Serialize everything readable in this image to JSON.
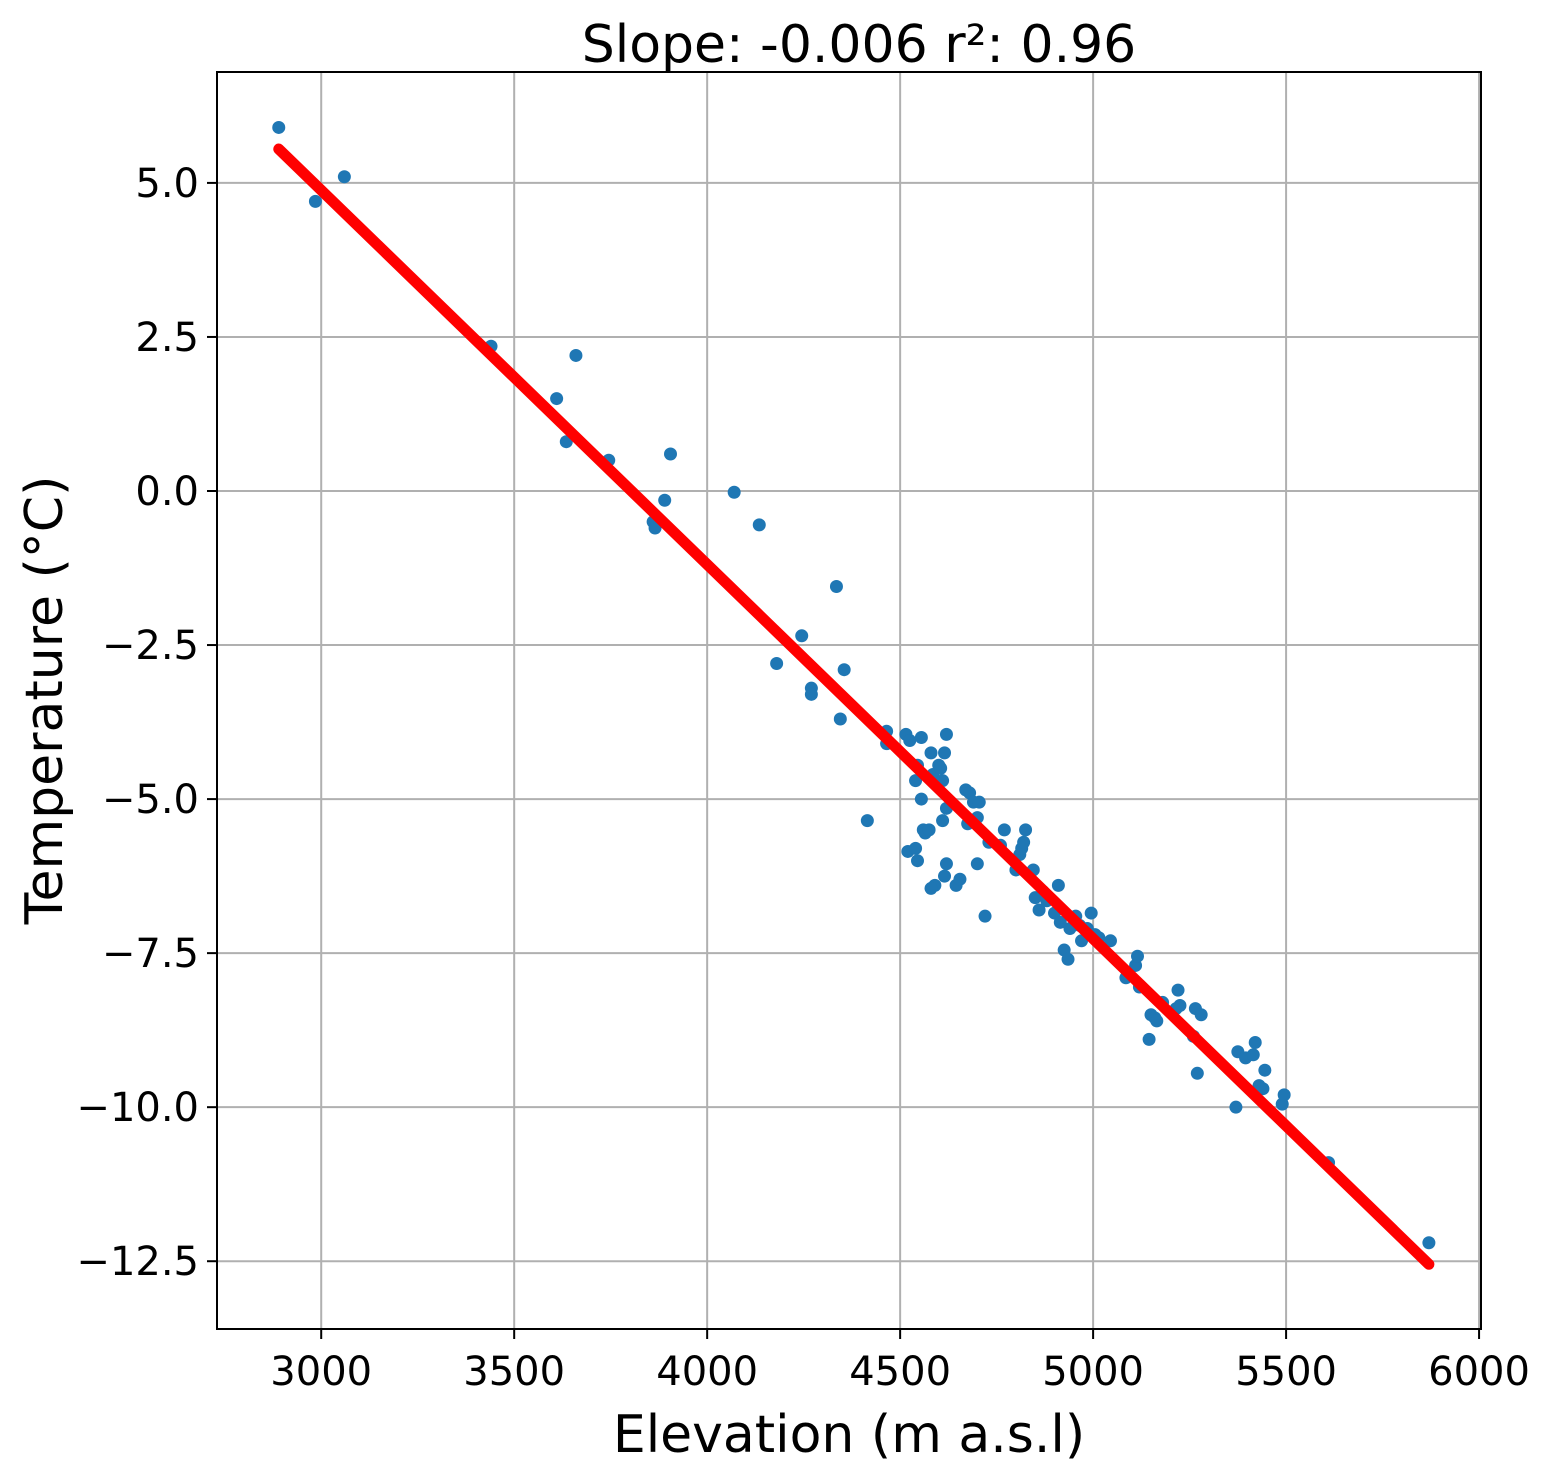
{
  "chart_data": {
    "type": "scatter",
    "title": "Slope: -0.006  r²: 0.96",
    "xlabel": "Elevation (m a.s.l)",
    "ylabel": "Temperature (°C)",
    "xlim": [
      2730,
      6005
    ],
    "ylim": [
      -13.6,
      6.8
    ],
    "xticks": [
      3000,
      3500,
      4000,
      4500,
      5000,
      5500,
      6000
    ],
    "xtick_labels": [
      "3000",
      "3500",
      "4000",
      "4500",
      "5000",
      "5500",
      "6000"
    ],
    "yticks": [
      5.0,
      2.5,
      0.0,
      -2.5,
      -5.0,
      -7.5,
      -10.0,
      -12.5
    ],
    "ytick_labels": [
      "5.0",
      "2.5",
      "0.0",
      "−2.5",
      "−5.0",
      "−7.5",
      "−10.0",
      "−12.5"
    ],
    "grid": true,
    "series": [
      {
        "name": "observations",
        "kind": "scatter",
        "color": "#1f77b4",
        "points": [
          [
            2890,
            5.9
          ],
          [
            2985,
            4.7
          ],
          [
            3060,
            5.1
          ],
          [
            3440,
            2.35
          ],
          [
            3660,
            2.2
          ],
          [
            3610,
            1.5
          ],
          [
            3635,
            0.8
          ],
          [
            3745,
            0.5
          ],
          [
            3860,
            -0.5
          ],
          [
            3865,
            -0.6
          ],
          [
            3890,
            -0.15
          ],
          [
            3905,
            0.6
          ],
          [
            4070,
            -0.02
          ],
          [
            4135,
            -0.55
          ],
          [
            4245,
            -2.35
          ],
          [
            4180,
            -2.8
          ],
          [
            4270,
            -3.2
          ],
          [
            4270,
            -3.3
          ],
          [
            4335,
            -1.55
          ],
          [
            4355,
            -2.9
          ],
          [
            4345,
            -3.7
          ],
          [
            4415,
            -5.35
          ],
          [
            4465,
            -3.9
          ],
          [
            4465,
            -4.1
          ],
          [
            4515,
            -3.95
          ],
          [
            4525,
            -4.05
          ],
          [
            4540,
            -4.7
          ],
          [
            4545,
            -4.45
          ],
          [
            4555,
            -4.0
          ],
          [
            4555,
            -5.0
          ],
          [
            4560,
            -5.5
          ],
          [
            4565,
            -5.55
          ],
          [
            4575,
            -5.5
          ],
          [
            4580,
            -4.25
          ],
          [
            4585,
            -4.6
          ],
          [
            4595,
            -4.75
          ],
          [
            4600,
            -4.45
          ],
          [
            4605,
            -4.5
          ],
          [
            4610,
            -4.7
          ],
          [
            4615,
            -4.25
          ],
          [
            4620,
            -3.95
          ],
          [
            4620,
            -5.15
          ],
          [
            4610,
            -5.35
          ],
          [
            4620,
            -6.05
          ],
          [
            4615,
            -6.25
          ],
          [
            4590,
            -6.4
          ],
          [
            4580,
            -6.45
          ],
          [
            4520,
            -5.85
          ],
          [
            4540,
            -5.8
          ],
          [
            4545,
            -6.0
          ],
          [
            4645,
            -6.4
          ],
          [
            4655,
            -6.3
          ],
          [
            4670,
            -4.85
          ],
          [
            4680,
            -4.9
          ],
          [
            4690,
            -5.05
          ],
          [
            4700,
            -5.3
          ],
          [
            4705,
            -5.05
          ],
          [
            4675,
            -5.4
          ],
          [
            4700,
            -6.05
          ],
          [
            4720,
            -6.9
          ],
          [
            4730,
            -5.7
          ],
          [
            4770,
            -5.5
          ],
          [
            4760,
            -5.75
          ],
          [
            4800,
            -6.15
          ],
          [
            4810,
            -5.9
          ],
          [
            4815,
            -5.8
          ],
          [
            4820,
            -5.7
          ],
          [
            4825,
            -5.5
          ],
          [
            4845,
            -6.15
          ],
          [
            4850,
            -6.6
          ],
          [
            4860,
            -6.8
          ],
          [
            4870,
            -6.5
          ],
          [
            4880,
            -6.65
          ],
          [
            4900,
            -6.85
          ],
          [
            4910,
            -6.4
          ],
          [
            4915,
            -7.0
          ],
          [
            4925,
            -7.45
          ],
          [
            4935,
            -7.6
          ],
          [
            4940,
            -7.1
          ],
          [
            4955,
            -6.9
          ],
          [
            4965,
            -7.05
          ],
          [
            4970,
            -7.3
          ],
          [
            4985,
            -7.1
          ],
          [
            4995,
            -6.85
          ],
          [
            5005,
            -7.2
          ],
          [
            5015,
            -7.25
          ],
          [
            5045,
            -7.3
          ],
          [
            5085,
            -7.9
          ],
          [
            5110,
            -7.7
          ],
          [
            5115,
            -7.55
          ],
          [
            5120,
            -8.05
          ],
          [
            5145,
            -8.9
          ],
          [
            5150,
            -8.5
          ],
          [
            5160,
            -8.55
          ],
          [
            5165,
            -8.6
          ],
          [
            5180,
            -8.3
          ],
          [
            5215,
            -8.4
          ],
          [
            5220,
            -8.1
          ],
          [
            5225,
            -8.35
          ],
          [
            5260,
            -8.85
          ],
          [
            5265,
            -8.4
          ],
          [
            5270,
            -9.45
          ],
          [
            5280,
            -8.5
          ],
          [
            5370,
            -10.0
          ],
          [
            5375,
            -9.1
          ],
          [
            5395,
            -9.2
          ],
          [
            5415,
            -9.15
          ],
          [
            5420,
            -8.95
          ],
          [
            5430,
            -9.65
          ],
          [
            5440,
            -9.7
          ],
          [
            5445,
            -9.4
          ],
          [
            5490,
            -9.95
          ],
          [
            5495,
            -9.8
          ],
          [
            5610,
            -10.9
          ],
          [
            5870,
            -12.2
          ]
        ]
      },
      {
        "name": "regression",
        "kind": "line",
        "color": "#ff0000",
        "x": [
          2890,
          5870
        ],
        "y": [
          5.55,
          -12.55
        ]
      }
    ]
  }
}
